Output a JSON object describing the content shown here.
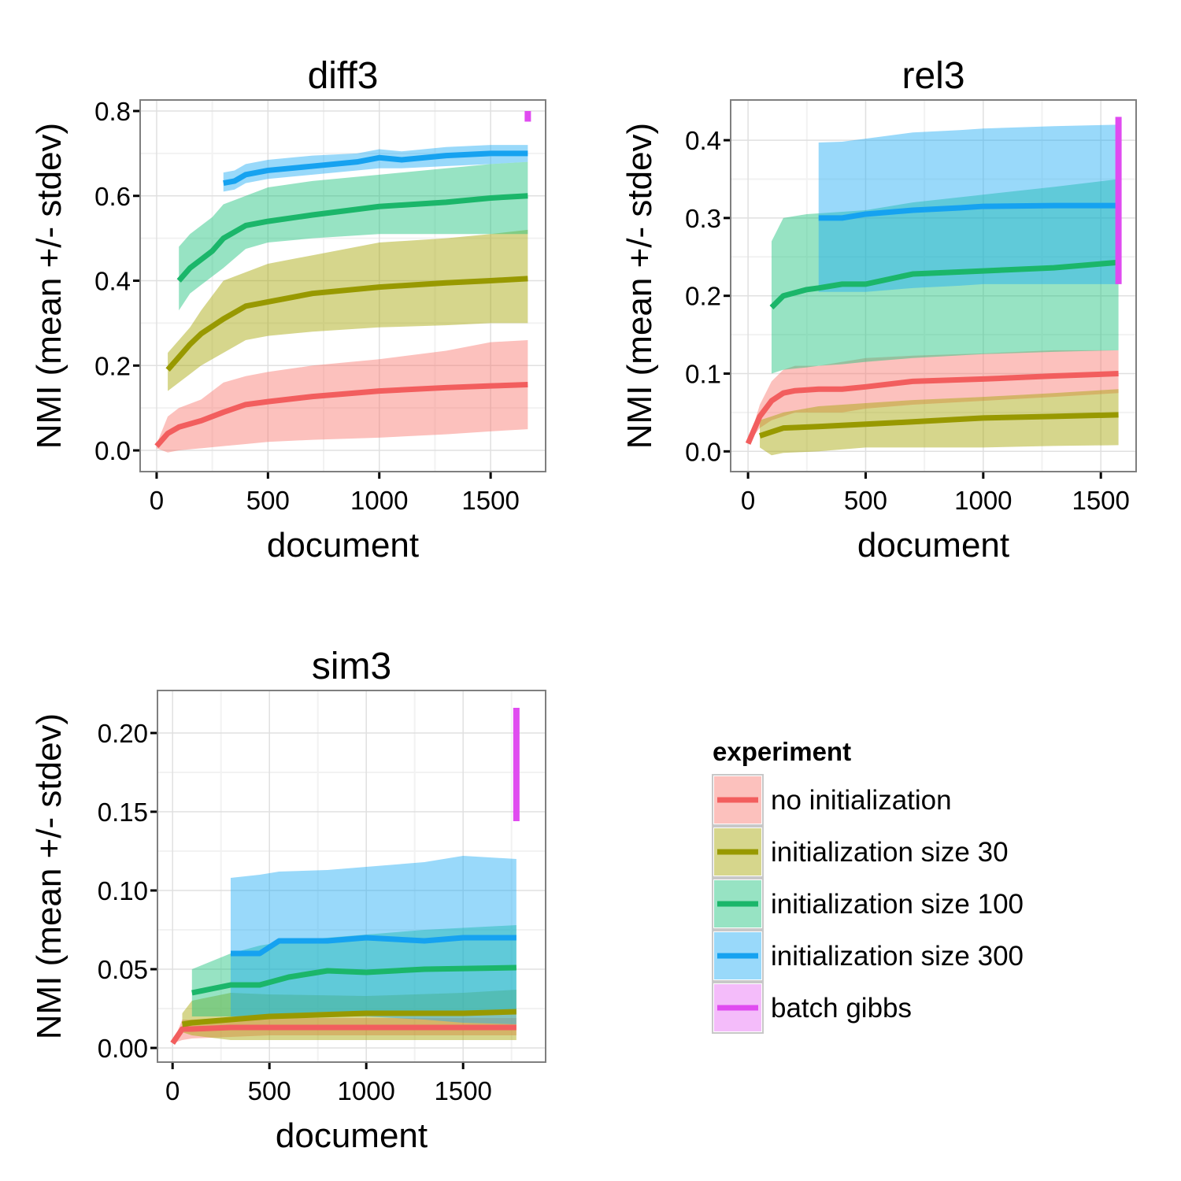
{
  "chart_data": {
    "type": "line",
    "y_label": "NMI (mean +/- stdev)",
    "x_label": "document",
    "legend": {
      "title": "experiment",
      "placement": "bottom-right",
      "items": [
        {
          "key": "none",
          "label": "no initialization",
          "color": "#F25E5E",
          "fill": "#F8766D"
        },
        {
          "key": "s30",
          "label": "initialization size 30",
          "color": "#989900",
          "fill": "#A3A500"
        },
        {
          "key": "s100",
          "label": "initialization size 100",
          "color": "#1BB66A",
          "fill": "#19C07A"
        },
        {
          "key": "s300",
          "label": "initialization size 300",
          "color": "#16A2F0",
          "fill": "#1DAAF4"
        },
        {
          "key": "batch",
          "label": "batch gibbs",
          "color": "#E04BF0",
          "fill": "#E76BF3"
        }
      ]
    },
    "panels": [
      {
        "title": "diff3",
        "xlim": [
          -74,
          1747
        ],
        "ylim": [
          -0.05,
          0.826
        ],
        "x_ticks": [
          0,
          500,
          1000,
          1500
        ],
        "x_tick_labels": [
          "0",
          "500",
          "1000",
          "1500"
        ],
        "y_ticks": [
          0,
          0.2,
          0.4,
          0.6,
          0.8
        ],
        "y_tick_labels": [
          "0.0",
          "0.2",
          "0.4",
          "0.6",
          "0.8"
        ],
        "series": [
          {
            "key": "none",
            "x": [
              0,
              50,
              100,
              200,
              300,
              400,
              500,
              700,
              1000,
              1300,
              1500,
              1667
            ],
            "mean": [
              0.01,
              0.04,
              0.055,
              0.07,
              0.09,
              0.108,
              0.115,
              0.127,
              0.14,
              0.148,
              0.152,
              0.155
            ],
            "lo": [
              0.005,
              -0.005,
              0.0,
              0.005,
              0.01,
              0.015,
              0.02,
              0.025,
              0.03,
              0.038,
              0.045,
              0.05
            ],
            "hi": [
              0.015,
              0.08,
              0.1,
              0.12,
              0.16,
              0.175,
              0.185,
              0.2,
              0.215,
              0.235,
              0.255,
              0.26
            ]
          },
          {
            "key": "s30",
            "x": [
              50,
              100,
              150,
              200,
              300,
              400,
              500,
              700,
              1000,
              1300,
              1500,
              1667
            ],
            "mean": [
              0.19,
              0.22,
              0.25,
              0.275,
              0.31,
              0.34,
              0.35,
              0.37,
              0.385,
              0.395,
              0.4,
              0.405
            ],
            "lo": [
              0.14,
              0.16,
              0.18,
              0.2,
              0.23,
              0.26,
              0.27,
              0.28,
              0.29,
              0.295,
              0.3,
              0.3
            ],
            "hi": [
              0.23,
              0.26,
              0.29,
              0.33,
              0.4,
              0.42,
              0.44,
              0.46,
              0.49,
              0.5,
              0.51,
              0.52
            ]
          },
          {
            "key": "s100",
            "x": [
              100,
              150,
              250,
              300,
              400,
              500,
              700,
              1000,
              1300,
              1500,
              1667
            ],
            "mean": [
              0.4,
              0.43,
              0.47,
              0.5,
              0.53,
              0.54,
              0.555,
              0.575,
              0.585,
              0.595,
              0.6
            ],
            "lo": [
              0.33,
              0.37,
              0.41,
              0.43,
              0.475,
              0.49,
              0.5,
              0.51,
              0.51,
              0.51,
              0.51
            ],
            "hi": [
              0.48,
              0.51,
              0.55,
              0.58,
              0.6,
              0.62,
              0.635,
              0.65,
              0.665,
              0.675,
              0.68
            ]
          },
          {
            "key": "s300",
            "x": [
              300,
              350,
              400,
              500,
              700,
              900,
              1000,
              1100,
              1300,
              1500,
              1667
            ],
            "mean": [
              0.63,
              0.635,
              0.65,
              0.66,
              0.67,
              0.68,
              0.69,
              0.685,
              0.695,
              0.7,
              0.7
            ],
            "lo": [
              0.61,
              0.615,
              0.63,
              0.64,
              0.65,
              0.66,
              0.665,
              0.665,
              0.67,
              0.675,
              0.68
            ],
            "hi": [
              0.655,
              0.66,
              0.675,
              0.685,
              0.695,
              0.7,
              0.71,
              0.705,
              0.715,
              0.72,
              0.72
            ]
          },
          {
            "key": "batch",
            "x": [
              1667
            ],
            "lo": [
              0.775
            ],
            "hi": [
              0.8
            ]
          }
        ]
      },
      {
        "title": "rel3",
        "xlim": [
          -74,
          1650
        ],
        "ylim": [
          -0.026,
          0.4517
        ],
        "x_ticks": [
          0,
          500,
          1000,
          1500
        ],
        "x_tick_labels": [
          "0",
          "500",
          "1000",
          "1500"
        ],
        "y_ticks": [
          0,
          0.1,
          0.2,
          0.3,
          0.4
        ],
        "y_tick_labels": [
          "0.0",
          "0.1",
          "0.2",
          "0.3",
          "0.4"
        ],
        "series": [
          {
            "key": "none",
            "x": [
              0,
              50,
              100,
              150,
              200,
              300,
              400,
              500,
              700,
              1000,
              1300,
              1575
            ],
            "mean": [
              0.01,
              0.045,
              0.065,
              0.075,
              0.078,
              0.08,
              0.08,
              0.083,
              0.09,
              0.093,
              0.097,
              0.1
            ],
            "lo": [
              0.01,
              0.03,
              0.04,
              0.045,
              0.05,
              0.05,
              0.05,
              0.055,
              0.06,
              0.065,
              0.07,
              0.075
            ],
            "hi": [
              0.01,
              0.06,
              0.09,
              0.105,
              0.11,
              0.11,
              0.115,
              0.12,
              0.123,
              0.126,
              0.13,
              0.13
            ]
          },
          {
            "key": "s30",
            "x": [
              50,
              100,
              150,
              300,
              500,
              700,
              1000,
              1300,
              1575
            ],
            "mean": [
              0.02,
              0.025,
              0.03,
              0.032,
              0.035,
              0.038,
              0.043,
              0.045,
              0.047
            ],
            "lo": [
              0.005,
              -0.005,
              -0.002,
              0.0,
              0.005,
              0.005,
              0.005,
              0.007,
              0.008
            ],
            "hi": [
              0.04,
              0.045,
              0.05,
              0.058,
              0.062,
              0.066,
              0.07,
              0.075,
              0.08
            ]
          },
          {
            "key": "s100",
            "x": [
              100,
              150,
              250,
              300,
              400,
              500,
              700,
              1000,
              1300,
              1575
            ],
            "mean": [
              0.185,
              0.2,
              0.208,
              0.21,
              0.215,
              0.215,
              0.228,
              0.232,
              0.236,
              0.243
            ],
            "lo": [
              0.1,
              0.105,
              0.108,
              0.11,
              0.112,
              0.115,
              0.12,
              0.125,
              0.128,
              0.13
            ],
            "hi": [
              0.27,
              0.3,
              0.305,
              0.306,
              0.308,
              0.31,
              0.32,
              0.33,
              0.34,
              0.35
            ]
          },
          {
            "key": "s300",
            "x": [
              300,
              400,
              500,
              700,
              900,
              1000,
              1300,
              1575
            ],
            "mean": [
              0.3,
              0.3,
              0.305,
              0.31,
              0.313,
              0.315,
              0.316,
              0.316
            ],
            "lo": [
              0.205,
              0.205,
              0.205,
              0.21,
              0.213,
              0.215,
              0.215,
              0.215
            ],
            "hi": [
              0.397,
              0.398,
              0.402,
              0.41,
              0.413,
              0.415,
              0.418,
              0.42
            ]
          },
          {
            "key": "batch",
            "x": [
              1575
            ],
            "lo": [
              0.215
            ],
            "hi": [
              0.43
            ]
          }
        ]
      },
      {
        "title": "sim3",
        "xlim": [
          -78,
          1926
        ],
        "ylim": [
          -0.009,
          0.227
        ],
        "x_ticks": [
          0,
          500,
          1000,
          1500
        ],
        "x_tick_labels": [
          "0",
          "500",
          "1000",
          "1500"
        ],
        "y_ticks": [
          0,
          0.05,
          0.1,
          0.15,
          0.2
        ],
        "y_tick_labels": [
          "0.00",
          "0.05",
          "0.10",
          "0.15",
          "0.20"
        ],
        "series": [
          {
            "key": "none",
            "x": [
              0,
              50,
              100,
              300,
              500,
              1000,
              1500,
              1775
            ],
            "mean": [
              0.003,
              0.012,
              0.012,
              0.013,
              0.013,
              0.013,
              0.013,
              0.013
            ],
            "lo": [
              0.003,
              0.005,
              0.006,
              0.007,
              0.008,
              0.008,
              0.008,
              0.008
            ],
            "hi": [
              0.003,
              0.018,
              0.018,
              0.019,
              0.019,
              0.019,
              0.019,
              0.019
            ]
          },
          {
            "key": "s30",
            "x": [
              50,
              100,
              300,
              500,
              1000,
              1500,
              1775
            ],
            "mean": [
              0.015,
              0.016,
              0.018,
              0.02,
              0.022,
              0.022,
              0.023
            ],
            "lo": [
              0.01,
              0.008,
              0.005,
              0.005,
              0.005,
              0.005,
              0.005
            ],
            "hi": [
              0.022,
              0.03,
              0.035,
              0.034,
              0.033,
              0.035,
              0.037
            ]
          },
          {
            "key": "s100",
            "x": [
              100,
              300,
              450,
              600,
              800,
              1000,
              1300,
              1775
            ],
            "mean": [
              0.035,
              0.04,
              0.04,
              0.045,
              0.049,
              0.048,
              0.05,
              0.051
            ],
            "lo": [
              0.02,
              0.02,
              0.021,
              0.022,
              0.023,
              0.023,
              0.022,
              0.022
            ],
            "hi": [
              0.05,
              0.06,
              0.065,
              0.068,
              0.07,
              0.072,
              0.075,
              0.078
            ]
          },
          {
            "key": "s300",
            "x": [
              300,
              450,
              550,
              800,
              1000,
              1300,
              1500,
              1775
            ],
            "mean": [
              0.06,
              0.06,
              0.068,
              0.068,
              0.07,
              0.068,
              0.07,
              0.07
            ],
            "lo": [
              0.02,
              0.02,
              0.02,
              0.02,
              0.02,
              0.018,
              0.016,
              0.015
            ],
            "hi": [
              0.108,
              0.11,
              0.112,
              0.113,
              0.115,
              0.118,
              0.122,
              0.12
            ]
          },
          {
            "key": "batch",
            "x": [
              1775
            ],
            "lo": [
              0.144
            ],
            "hi": [
              0.216
            ]
          }
        ]
      }
    ]
  }
}
